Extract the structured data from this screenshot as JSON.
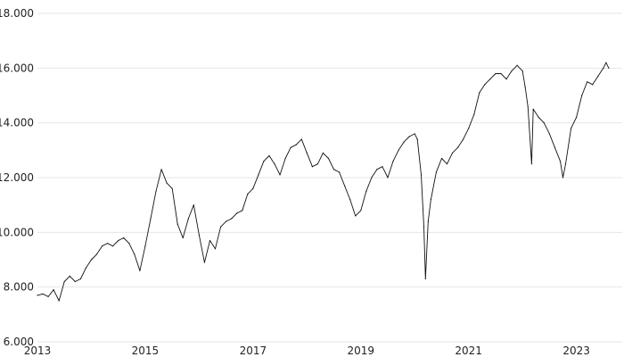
{
  "chart_data": {
    "type": "line",
    "title": "",
    "xlabel": "",
    "ylabel": "",
    "xlim": [
      2013.0,
      2023.85
    ],
    "ylim": [
      6000,
      18000
    ],
    "grid": "horizontal",
    "legend": "none",
    "line_color": "#111111",
    "y_ticks": [
      {
        "value": 6000,
        "label": "6.000"
      },
      {
        "value": 8000,
        "label": "8.000"
      },
      {
        "value": 10000,
        "label": "10.000"
      },
      {
        "value": 12000,
        "label": "12.000"
      },
      {
        "value": 14000,
        "label": "14.000"
      },
      {
        "value": 16000,
        "label": "16.000"
      },
      {
        "value": 18000,
        "label": "18.000"
      }
    ],
    "x_ticks": [
      {
        "value": 2013,
        "label": "2013"
      },
      {
        "value": 2015,
        "label": "2015"
      },
      {
        "value": 2017,
        "label": "2017"
      },
      {
        "value": 2019,
        "label": "2019"
      },
      {
        "value": 2021,
        "label": "2021"
      },
      {
        "value": 2023,
        "label": "2023"
      }
    ],
    "series": [
      {
        "x": [
          2013.0,
          2013.1,
          2013.2,
          2013.3,
          2013.4,
          2013.5,
          2013.6,
          2013.7,
          2013.8,
          2013.9,
          2014.0,
          2014.1,
          2014.2,
          2014.3,
          2014.4,
          2014.5,
          2014.6,
          2014.7,
          2014.8,
          2014.9,
          2015.0,
          2015.1,
          2015.2,
          2015.3,
          2015.4,
          2015.5,
          2015.6,
          2015.7,
          2015.8,
          2015.9,
          2016.0,
          2016.1,
          2016.2,
          2016.3,
          2016.4,
          2016.5,
          2016.6,
          2016.7,
          2016.8,
          2016.9,
          2017.0,
          2017.1,
          2017.2,
          2017.3,
          2017.4,
          2017.5,
          2017.6,
          2017.7,
          2017.8,
          2017.9,
          2018.0,
          2018.1,
          2018.2,
          2018.3,
          2018.4,
          2018.5,
          2018.6,
          2018.7,
          2018.8,
          2018.9,
          2019.0,
          2019.1,
          2019.2,
          2019.3,
          2019.4,
          2019.5,
          2019.6,
          2019.7,
          2019.8,
          2019.9,
          2020.0,
          2020.05,
          2020.12,
          2020.17,
          2020.2,
          2020.25,
          2020.3,
          2020.4,
          2020.5,
          2020.6,
          2020.7,
          2020.8,
          2020.9,
          2021.0,
          2021.1,
          2021.2,
          2021.3,
          2021.4,
          2021.5,
          2021.6,
          2021.7,
          2021.8,
          2021.9,
          2022.0,
          2022.05,
          2022.1,
          2022.17,
          2022.2,
          2022.3,
          2022.4,
          2022.5,
          2022.6,
          2022.7,
          2022.75,
          2022.8,
          2022.9,
          2023.0,
          2023.1,
          2023.2,
          2023.3,
          2023.4,
          2023.5,
          2023.55,
          2023.6
        ],
        "y": [
          7700,
          7750,
          7650,
          7900,
          7500,
          8200,
          8400,
          8200,
          8300,
          8700,
          9000,
          9200,
          9500,
          9600,
          9500,
          9700,
          9800,
          9600,
          9200,
          8600,
          9500,
          10500,
          11500,
          12300,
          11800,
          11600,
          10300,
          9800,
          10500,
          11000,
          9900,
          8900,
          9700,
          9400,
          10200,
          10400,
          10500,
          10700,
          10800,
          11400,
          11600,
          12100,
          12600,
          12800,
          12500,
          12100,
          12700,
          13100,
          13200,
          13400,
          12900,
          12400,
          12500,
          12900,
          12700,
          12300,
          12200,
          11700,
          11200,
          10600,
          10800,
          11500,
          12000,
          12300,
          12400,
          12000,
          12600,
          13000,
          13300,
          13500,
          13600,
          13400,
          12100,
          10200,
          8300,
          10400,
          11200,
          12200,
          12700,
          12500,
          12900,
          13100,
          13400,
          13800,
          14300,
          15100,
          15400,
          15600,
          15800,
          15800,
          15600,
          15900,
          16100,
          15900,
          15300,
          14600,
          12500,
          14500,
          14200,
          14000,
          13600,
          13100,
          12600,
          12000,
          12500,
          13800,
          14200,
          15000,
          15500,
          15400,
          15700,
          16000,
          16200,
          16000
        ]
      }
    ]
  }
}
